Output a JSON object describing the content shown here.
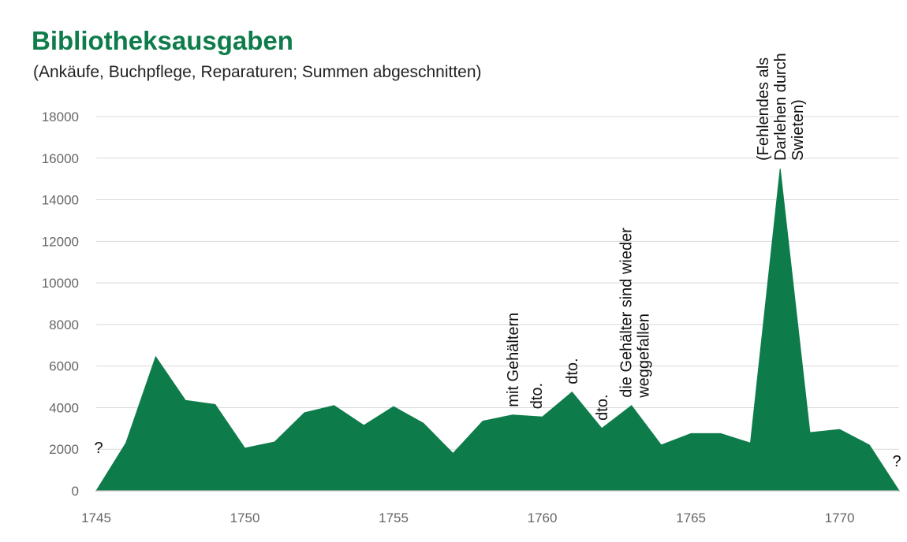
{
  "chart_data": {
    "type": "area",
    "title": "Bibliotheksausgaben",
    "subtitle": "(Ankäufe, Buchpflege, Reparaturen; Summen abgeschnitten)",
    "xlabel": "",
    "ylabel": "",
    "xlim": [
      1745,
      1772
    ],
    "ylim": [
      0,
      18000
    ],
    "x_ticks": [
      1745,
      1750,
      1755,
      1760,
      1765,
      1770
    ],
    "y_ticks": [
      0,
      2000,
      4000,
      6000,
      8000,
      10000,
      12000,
      14000,
      16000,
      18000
    ],
    "grid": true,
    "color": "#0e7c4a",
    "x": [
      1745,
      1746,
      1747,
      1748,
      1749,
      1750,
      1751,
      1752,
      1753,
      1754,
      1755,
      1756,
      1757,
      1758,
      1759,
      1760,
      1761,
      1762,
      1763,
      1764,
      1765,
      1766,
      1767,
      1768,
      1769,
      1770,
      1771,
      1772
    ],
    "values": [
      0,
      2300,
      6450,
      4350,
      4150,
      2050,
      2350,
      3750,
      4100,
      3150,
      4050,
      3250,
      1800,
      3350,
      3650,
      3550,
      4750,
      3000,
      4100,
      2200,
      2750,
      2750,
      2300,
      15500,
      2800,
      2950,
      2200,
      0
    ],
    "annotations": [
      {
        "x": 1745,
        "lines": [
          "?"
        ],
        "rotated": false
      },
      {
        "x": 1772,
        "lines": [
          "?"
        ],
        "rotated": false
      },
      {
        "x": 1759,
        "lines": [
          "mit Gehältern"
        ],
        "rotated": true
      },
      {
        "x": 1759.8,
        "lines": [
          "dto."
        ],
        "rotated": true
      },
      {
        "x": 1761,
        "lines": [
          "dto."
        ],
        "rotated": true
      },
      {
        "x": 1762,
        "lines": [
          "dto."
        ],
        "rotated": true
      },
      {
        "x": 1763.1,
        "lines": [
          "die Gehälter sind wieder",
          "weggefallen"
        ],
        "rotated": true
      },
      {
        "x": 1768,
        "lines": [
          "(Fehlendes als",
          "Darlehen durch",
          "Swieten)"
        ],
        "rotated": true
      }
    ]
  }
}
